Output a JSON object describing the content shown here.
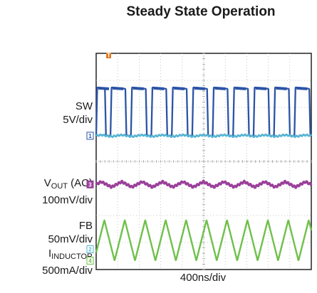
{
  "title": "Steady State Operation",
  "labels": {
    "sw_name": "SW",
    "sw_scale": "5V/div",
    "vout_name": "V",
    "vout_sub": "OUT",
    "vout_suffix": " (AC)",
    "vout_scale": "100mV/div",
    "fb_name": "FB",
    "fb_scale": "50mV/div",
    "il_name": "I",
    "il_sub": "INDUCTOR",
    "il_scale": "500mA/div"
  },
  "chart_data": {
    "type": "line",
    "title": "Steady State Operation",
    "xlabel": "400ns/div",
    "ylabel": "",
    "grid": true,
    "x_divisions": 10,
    "y_divisions": 8,
    "time_per_div_ns": 400,
    "trigger_marker": "T",
    "series": [
      {
        "name": "SW",
        "scale": "5V/div",
        "channel": "1",
        "color": "#2b54a6",
        "waveform": "square",
        "period_ns": 380,
        "duty": 0.78,
        "pulses": 8,
        "high_div": 2.0
      },
      {
        "name": "VOUT (AC)",
        "scale": "100mV/div",
        "channel": "3",
        "color": "#9b3f9a",
        "waveform": "ripple",
        "period_ns": 380,
        "peak_to_peak_div": 0.2
      },
      {
        "name": "FB",
        "scale": "50mV/div",
        "channel": "2",
        "color": "#56b4d3",
        "waveform": "ripple",
        "period_ns": 380,
        "peak_to_peak_div": 0.1
      },
      {
        "name": "INDUCTOR",
        "scale": "500mA/div",
        "channel": "4",
        "color": "#6fc04a",
        "waveform": "triangle",
        "period_ns": 380,
        "peak_to_peak_div": 1.5
      }
    ]
  }
}
